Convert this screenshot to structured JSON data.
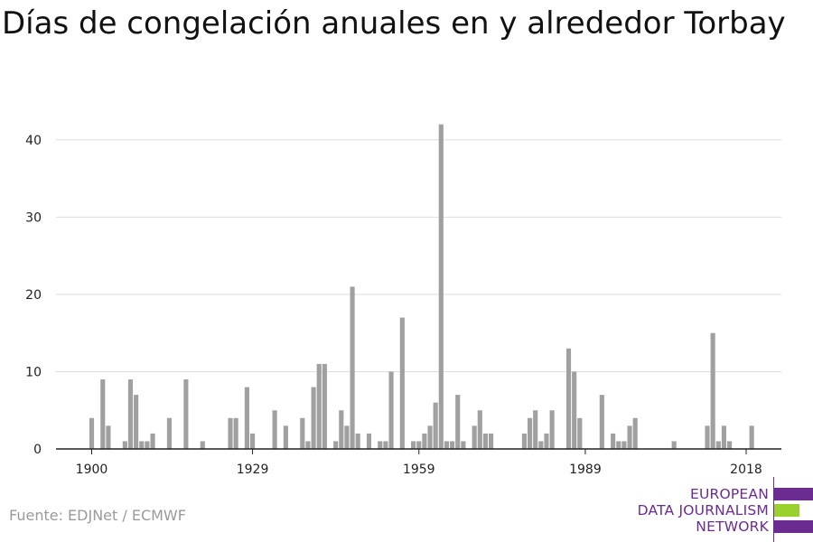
{
  "title": "Días de congelación anuales en y alrededor Torbay",
  "source": "Fuente: EDJNet / ECMWF",
  "logo": {
    "line1": "EUROPEAN",
    "line2": "DATA JOURNALISM",
    "line3": "NETWORK",
    "colors": {
      "primary": "#6b2c91",
      "accent": "#9bd12f"
    }
  },
  "chart_data": {
    "type": "bar",
    "title": "Días de congelación anuales en y alrededor Torbay",
    "xlabel": "",
    "ylabel": "",
    "x_ticks": [
      1900,
      1929,
      1959,
      1989,
      2018
    ],
    "y_ticks": [
      0,
      10,
      20,
      30,
      40
    ],
    "xlim": [
      1894,
      2024
    ],
    "ylim": [
      0,
      45
    ],
    "grid": true,
    "bar_color": "#a0a0a0",
    "categories": [
      1900,
      1901,
      1902,
      1903,
      1904,
      1905,
      1906,
      1907,
      1908,
      1909,
      1910,
      1911,
      1912,
      1913,
      1914,
      1915,
      1916,
      1917,
      1918,
      1919,
      1920,
      1921,
      1922,
      1923,
      1924,
      1925,
      1926,
      1927,
      1928,
      1929,
      1930,
      1931,
      1932,
      1933,
      1934,
      1935,
      1936,
      1937,
      1938,
      1939,
      1940,
      1941,
      1942,
      1943,
      1944,
      1945,
      1946,
      1947,
      1948,
      1949,
      1950,
      1951,
      1952,
      1953,
      1954,
      1955,
      1956,
      1957,
      1958,
      1959,
      1960,
      1961,
      1962,
      1963,
      1964,
      1965,
      1966,
      1967,
      1968,
      1969,
      1970,
      1971,
      1972,
      1973,
      1974,
      1975,
      1976,
      1977,
      1978,
      1979,
      1980,
      1981,
      1982,
      1983,
      1984,
      1985,
      1986,
      1987,
      1988,
      1989,
      1990,
      1991,
      1992,
      1993,
      1994,
      1995,
      1996,
      1997,
      1998,
      1999,
      2000,
      2001,
      2002,
      2003,
      2004,
      2005,
      2006,
      2007,
      2008,
      2009,
      2010,
      2011,
      2012,
      2013,
      2014,
      2015,
      2016,
      2017,
      2018,
      2019
    ],
    "values": [
      4,
      0,
      9,
      3,
      0,
      0,
      1,
      9,
      7,
      1,
      1,
      2,
      0,
      0,
      4,
      0,
      0,
      9,
      0,
      0,
      1,
      0,
      0,
      0,
      0,
      4,
      4,
      0,
      8,
      2,
      0,
      0,
      0,
      5,
      0,
      3,
      0,
      0,
      4,
      1,
      8,
      11,
      11,
      0,
      1,
      5,
      3,
      21,
      2,
      0,
      2,
      0,
      1,
      1,
      10,
      0,
      17,
      0,
      1,
      1,
      2,
      3,
      6,
      42,
      1,
      1,
      7,
      1,
      0,
      3,
      5,
      2,
      2,
      0,
      0,
      0,
      0,
      0,
      2,
      4,
      5,
      1,
      2,
      5,
      0,
      0,
      13,
      10,
      4,
      0,
      0,
      0,
      7,
      0,
      2,
      1,
      1,
      3,
      4,
      0,
      0,
      0,
      0,
      0,
      0,
      1,
      0,
      0,
      0,
      0,
      0,
      3,
      15,
      1,
      3,
      1,
      0,
      0,
      0,
      3
    ]
  }
}
